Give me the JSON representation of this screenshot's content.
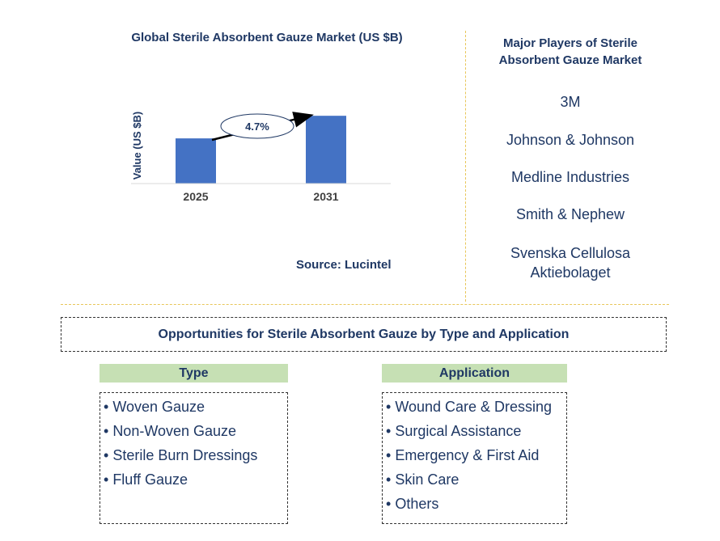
{
  "chart_data": {
    "type": "bar",
    "title": "Global Sterile Absorbent Gauze Market (US $B)",
    "ylabel": "Value (US $B)",
    "categories": [
      "2025",
      "2031"
    ],
    "values": [
      1.0,
      1.5
    ],
    "ylim": [
      0,
      1.7
    ],
    "grid": false,
    "annotation": "4.7%",
    "bar_color": "#4472c4"
  },
  "source": "Source: Lucintel",
  "players": {
    "title_lines": [
      "Major Players of Sterile",
      "Absorbent Gauze Market"
    ],
    "items": [
      [
        "3M"
      ],
      [
        "Johnson & Johnson"
      ],
      [
        "Medline Industries"
      ],
      [
        "Smith & Nephew"
      ],
      [
        "Svenska Cellulosa",
        "Aktiebolaget"
      ]
    ]
  },
  "opportunities": {
    "title": "Opportunities for Sterile Absorbent Gauze by Type and Application",
    "type": {
      "header": "Type",
      "items": [
        "Woven Gauze",
        "Non-Woven Gauze",
        "Sterile Burn Dressings",
        "Fluff Gauze"
      ]
    },
    "application": {
      "header": "Application",
      "items": [
        "Wound Care & Dressing",
        "Surgical Assistance",
        "Emergency & First Aid",
        "Skin Care",
        "Others"
      ]
    }
  },
  "colors": {
    "text": "#1f3864",
    "header_bg": "#c6e0b4",
    "divider": "#e8c65a"
  }
}
